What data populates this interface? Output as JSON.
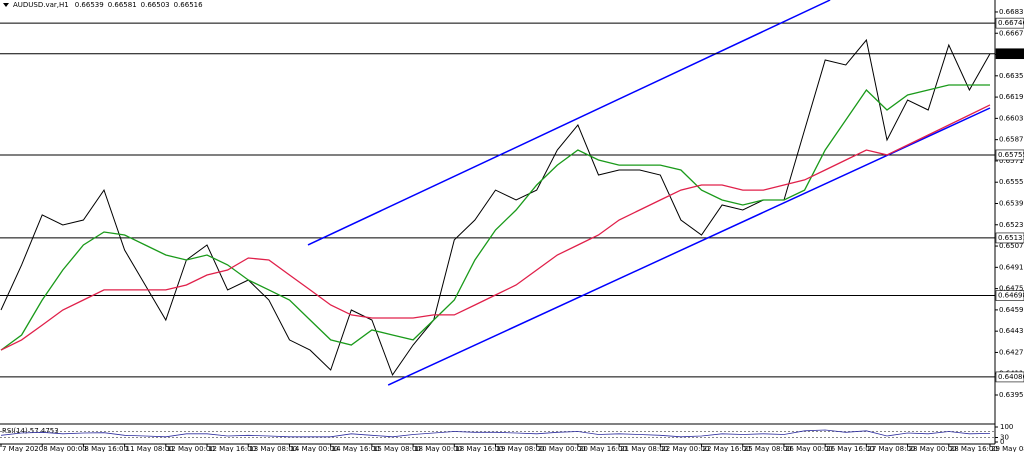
{
  "chart_data": [
    {
      "type": "line",
      "title": "AUDUSD.var,H1",
      "ohlc": [
        0.66539,
        0.66581,
        0.66503,
        0.66516
      ],
      "categories": [
        "7 May 2020",
        null,
        "8 May 00:00",
        null,
        "8 May 16:00",
        null,
        "11 May 08:00",
        null,
        "12 May 00:00",
        null,
        "12 May 16:00",
        null,
        "13 May 08:00",
        null,
        "14 May 00:00",
        null,
        "14 May 16:00",
        null,
        "15 May 08:00",
        null,
        "18 May 00:00",
        null,
        "18 May 16:00",
        null,
        "19 May 08:00",
        null,
        "20 May 00:00",
        null,
        "20 May 16:00",
        null,
        "21 May 08:00",
        null,
        "22 May 00:00",
        null,
        "22 May 16:00",
        null,
        "25 May 08:00",
        null,
        "26 May 00:00",
        null,
        "26 May 16:00",
        null,
        "27 May 08:00",
        null,
        "28 May 00:00",
        null,
        "28 May 16:00",
        null,
        "29 May 08:00"
      ],
      "series": [
        {
          "color": "#000000",
          "values": [
            0.64589,
            0.64928,
            0.65304,
            0.65228,
            0.65266,
            0.65491,
            0.6504,
            0.64777,
            0.64514,
            0.64965,
            0.65078,
            0.6474,
            0.64815,
            0.64664,
            0.64364,
            0.64288,
            0.64138,
            0.64589,
            0.64514,
            0.64101,
            0.64326,
            0.64514,
            0.65116,
            0.65266,
            0.65491,
            0.65416,
            0.65491,
            0.65792,
            0.6598,
            0.65604,
            0.65642,
            0.65642,
            0.65604,
            0.65266,
            0.65153,
            0.65379,
            0.65341,
            0.65416,
            0.65416,
            0.65943,
            0.66469,
            0.66431,
            0.66619,
            0.65867,
            0.66168,
            0.66093,
            0.66582,
            0.66243,
            0.66516
          ]
        },
        {
          "color": "#1a9a1a",
          "values": [
            0.64288,
            0.64401,
            0.64664,
            0.6489,
            0.65078,
            0.65176,
            0.65153,
            0.65078,
            0.65003,
            0.64965,
            0.65003,
            0.64928,
            0.64815,
            0.6474,
            0.64664,
            0.64514,
            0.64364,
            0.64326,
            0.64439,
            0.64401,
            0.64364,
            0.64514,
            0.64664,
            0.64965,
            0.65191,
            0.65341,
            0.65529,
            0.65679,
            0.65792,
            0.65717,
            0.65679,
            0.65679,
            0.65679,
            0.65642,
            0.65491,
            0.65416,
            0.65379,
            0.65416,
            0.65416,
            0.65491,
            0.65792,
            0.66018,
            0.66243,
            0.66093,
            0.66206,
            0.66243,
            0.66281,
            0.66281,
            0.66281
          ]
        },
        {
          "color": "#e0204a",
          "values": [
            0.64288,
            0.64364,
            0.64476,
            0.64589,
            0.64664,
            0.6474,
            0.6474,
            0.6474,
            0.6474,
            0.64777,
            0.64852,
            0.6489,
            0.6498,
            0.64965,
            0.64852,
            0.6474,
            0.64627,
            0.64552,
            0.64529,
            0.64529,
            0.64529,
            0.64552,
            0.64552,
            0.64627,
            0.64702,
            0.64777,
            0.6489,
            0.65003,
            0.65078,
            0.65153,
            0.65266,
            0.65341,
            0.65416,
            0.65491,
            0.65529,
            0.65529,
            0.65491,
            0.65491,
            0.65529,
            0.65567,
            0.65642,
            0.65717,
            0.65792,
            0.65755,
            0.6583,
            0.65905,
            0.6598,
            0.66055,
            0.66131
          ]
        }
      ],
      "channels": [
        {
          "color": "#0000ff",
          "x": [
            14.9,
            40.24
          ],
          "y": [
            0.65078,
            0.6692
          ]
        },
        {
          "color": "#0000ff",
          "x": [
            18.79,
            48.0
          ],
          "y": [
            0.64025,
            0.66108
          ]
        }
      ],
      "levels": [
        0.66746,
        0.65755,
        0.65131,
        0.64698,
        0.64086
      ],
      "current": 0.66516,
      "ylim": [
        0.6392,
        0.6692
      ],
      "yticks": [
        {
          "value": 0.6683,
          "label": "0.66830"
        },
        {
          "value": 0.6667,
          "label": "0.66670"
        },
        {
          "value": 0.6651,
          "label": "0.66510"
        },
        {
          "value": 0.6635,
          "label": "0.66350"
        },
        {
          "value": 0.6619,
          "label": "0.66190"
        },
        {
          "value": 0.6603,
          "label": "0.66030"
        },
        {
          "value": 0.6587,
          "label": "0.65870"
        },
        {
          "value": 0.6571,
          "label": "0.65710"
        },
        {
          "value": 0.6555,
          "label": "0.65550"
        },
        {
          "value": 0.6539,
          "label": "0.65390"
        },
        {
          "value": 0.6523,
          "label": "0.65230"
        },
        {
          "value": 0.6507,
          "label": "0.65070"
        },
        {
          "value": 0.6491,
          "label": "0.64910"
        },
        {
          "value": 0.6475,
          "label": "0.64750"
        },
        {
          "value": 0.6459,
          "label": "0.64590"
        },
        {
          "value": 0.6443,
          "label": "0.64430"
        },
        {
          "value": 0.6427,
          "label": "0.64270"
        },
        {
          "value": 0.6411,
          "label": "0.64110"
        },
        {
          "value": 0.6395,
          "label": "0.63950"
        }
      ]
    },
    {
      "type": "line",
      "title": "RSI(14)",
      "last": 57.4753,
      "color": "#3030a0",
      "values": [
        45,
        60,
        65,
        55,
        60,
        62,
        45,
        40,
        35,
        55,
        55,
        40,
        45,
        40,
        35,
        35,
        35,
        55,
        45,
        35,
        50,
        60,
        70,
        65,
        65,
        60,
        55,
        65,
        70,
        50,
        55,
        50,
        45,
        35,
        40,
        55,
        50,
        55,
        50,
        75,
        80,
        65,
        75,
        40,
        60,
        55,
        70,
        55,
        57.4753
      ],
      "levels": [
        70,
        30
      ],
      "ylim": [
        0,
        100
      ],
      "yticks": [
        100,
        30,
        0
      ]
    }
  ]
}
